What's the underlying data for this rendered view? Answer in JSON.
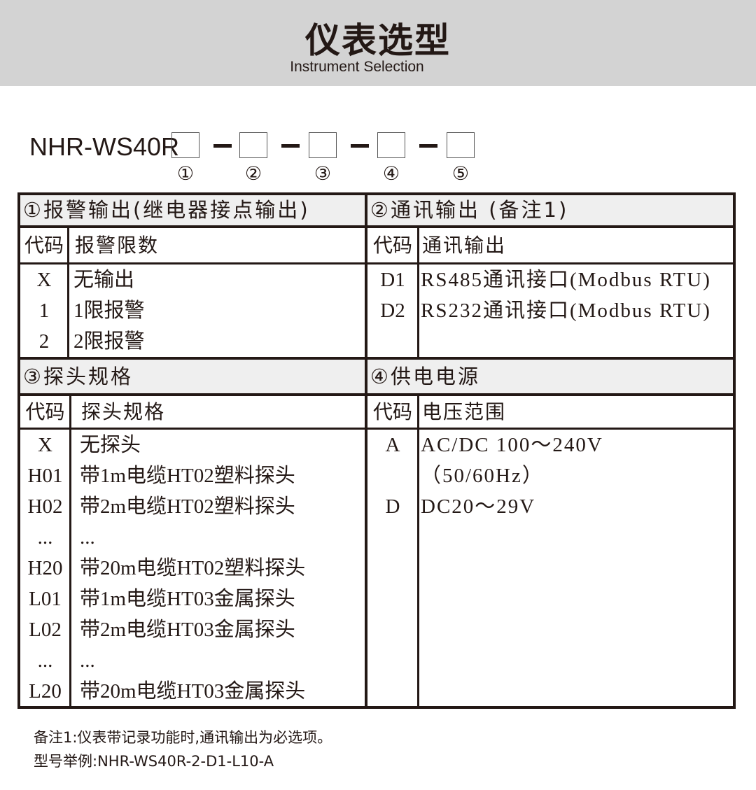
{
  "header": {
    "title": "仪表选型",
    "subtitle": "Instrument Selection"
  },
  "model_code": {
    "prefix": "NHR-WS40R",
    "positions": [
      "①",
      "②",
      "③",
      "④",
      "⑤"
    ]
  },
  "sections": {
    "alarm": {
      "title": "①报警输出(继电器接点输出)",
      "code_header": "代码",
      "desc_header": "报警限数",
      "rows": [
        {
          "code": "X",
          "desc": "无输出"
        },
        {
          "code": "1",
          "desc": "1限报警"
        },
        {
          "code": "2",
          "desc": "2限报警"
        }
      ]
    },
    "comm": {
      "title": "②通讯输出 (备注1)",
      "code_header": "代码",
      "desc_header": "通讯输出",
      "rows": [
        {
          "code": "D1",
          "desc": "RS485通讯接口(Modbus RTU)"
        },
        {
          "code": "D2",
          "desc": "RS232通讯接口(Modbus RTU)"
        }
      ]
    },
    "probe": {
      "title": "③探头规格",
      "code_header": "代码",
      "desc_header": "探头规格",
      "rows": [
        {
          "code": "X",
          "desc": "无探头"
        },
        {
          "code": "H01",
          "desc": "带1m电缆HT02塑料探头"
        },
        {
          "code": "H02",
          "desc": "带2m电缆HT02塑料探头"
        },
        {
          "code": "...",
          "desc": "..."
        },
        {
          "code": "H20",
          "desc": "带20m电缆HT02塑料探头"
        },
        {
          "code": "L01",
          "desc": "带1m电缆HT03金属探头"
        },
        {
          "code": "L02",
          "desc": "带2m电缆HT03金属探头"
        },
        {
          "code": "...",
          "desc": "..."
        },
        {
          "code": "L20",
          "desc": "带20m电缆HT03金属探头"
        }
      ]
    },
    "power": {
      "title": "④供电电源",
      "code_header": "代码",
      "desc_header": "电压范围",
      "rows": [
        {
          "code": "A",
          "desc": "AC/DC 100～240V"
        },
        {
          "code": "",
          "desc": "（50/60Hz）"
        },
        {
          "code": "D",
          "desc": "DC20～29V"
        }
      ]
    }
  },
  "notes": [
    "备注1:仪表带记录功能时,通讯输出为必选项。",
    "型号举例:NHR-WS40R-2-D1-L10-A"
  ]
}
